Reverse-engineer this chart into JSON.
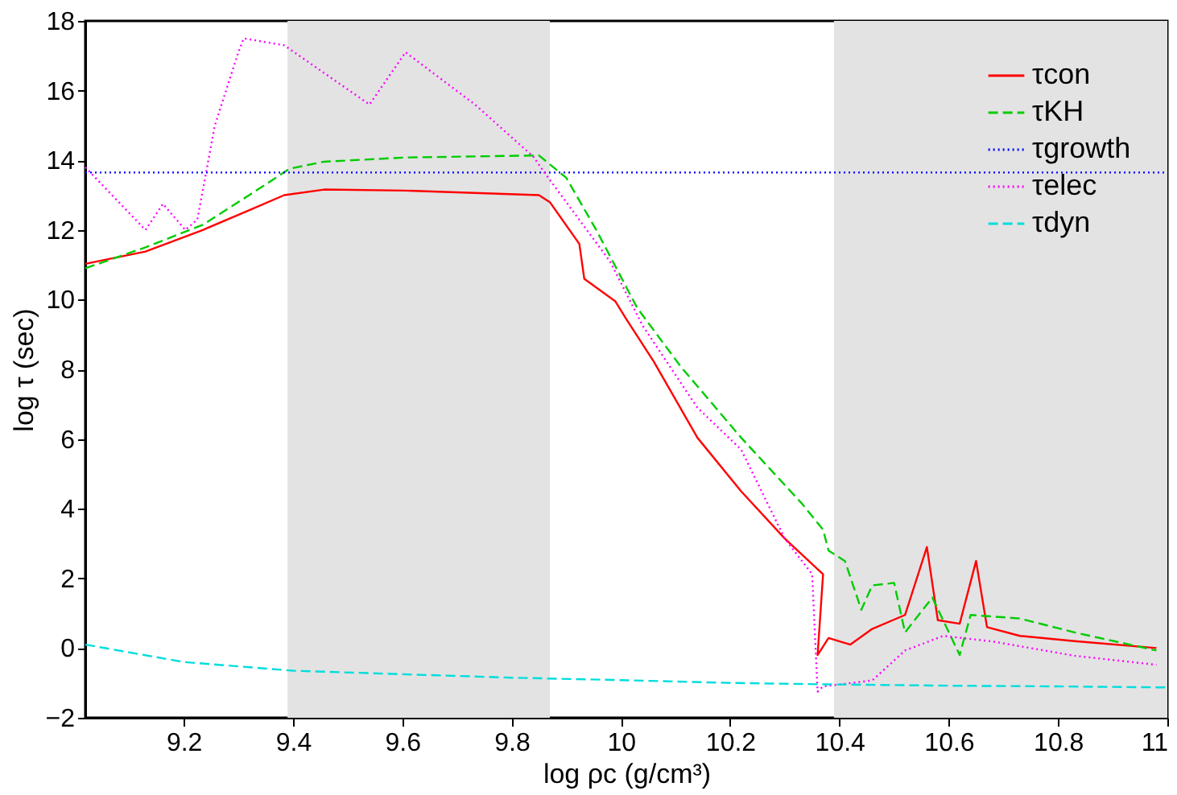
{
  "chart_data": {
    "type": "line",
    "xlabel": "log ρc (g/cm³)",
    "ylabel": "log τ (sec)",
    "xlim": [
      9.02,
      11
    ],
    "ylim": [
      -2,
      18
    ],
    "xticks": [
      9.2,
      9.4,
      9.6,
      9.8,
      10,
      10.2,
      10.4,
      10.6,
      10.8,
      11
    ],
    "yticks": [
      -2,
      0,
      2,
      4,
      6,
      8,
      10,
      12,
      14,
      16,
      18
    ],
    "grid": false,
    "legend": "top right",
    "marker": "none",
    "bands": [
      {
        "axis": "x",
        "from": 9.39,
        "to": 9.87,
        "label": null,
        "color": "#e3e3e3"
      },
      {
        "axis": "x",
        "from": 10.39,
        "to": 11,
        "label": null,
        "color": "#e3e3e3"
      }
    ],
    "series": [
      {
        "name": "τcon",
        "color": "#ff0000",
        "line_style": "solid",
        "x": [
          9.02,
          9.13,
          9.235,
          9.31,
          9.384,
          9.457,
          9.606,
          9.85,
          9.87,
          9.924,
          9.933,
          9.99,
          10.01,
          10.06,
          10.14,
          10.22,
          10.3,
          10.37,
          10.36,
          10.38,
          10.42,
          10.46,
          10.52,
          10.56,
          10.58,
          10.62,
          10.65,
          10.67,
          10.73,
          10.83,
          10.98
        ],
        "values": [
          11.03,
          11.38,
          12.0,
          12.5,
          13.0,
          13.16,
          13.13,
          13.0,
          12.8,
          11.6,
          10.6,
          9.95,
          9.44,
          8.23,
          6.04,
          4.5,
          3.14,
          2.12,
          -0.2,
          0.29,
          0.1,
          0.55,
          0.95,
          2.9,
          0.8,
          0.7,
          2.5,
          0.6,
          0.35,
          0.2,
          0.0
        ]
      },
      {
        "name": "τKH",
        "color": "#00cc00",
        "line_style": "dashed",
        "x": [
          9.02,
          9.13,
          9.235,
          9.32,
          9.394,
          9.457,
          9.606,
          9.85,
          9.9,
          9.955,
          10.03,
          10.11,
          10.22,
          10.33,
          10.37,
          10.38,
          10.41,
          10.44,
          10.46,
          10.5,
          10.52,
          10.57,
          10.62,
          10.64,
          10.73,
          10.83,
          10.98
        ],
        "values": [
          10.9,
          11.5,
          12.15,
          13.0,
          13.76,
          13.96,
          14.08,
          14.14,
          13.5,
          12.0,
          9.76,
          8.07,
          6.04,
          4.17,
          3.4,
          2.8,
          2.5,
          1.1,
          1.8,
          1.87,
          0.45,
          1.45,
          -0.2,
          0.95,
          0.85,
          0.45,
          -0.07
        ]
      },
      {
        "name": "τgrowth",
        "color": "#0000ff",
        "line_style": "dotted",
        "x": [
          9.02,
          11
        ],
        "values": [
          13.65,
          13.65
        ]
      },
      {
        "name": "τelec",
        "color": "#ff00ff",
        "line_style": "dotted",
        "x": [
          9.02,
          9.13,
          9.162,
          9.203,
          9.225,
          9.257,
          9.3,
          9.31,
          9.384,
          9.54,
          9.606,
          9.733,
          9.84,
          9.86,
          9.98,
          10.04,
          10.14,
          10.22,
          10.3,
          10.35,
          10.36,
          10.37,
          10.46,
          10.52,
          10.59,
          10.68,
          10.83,
          10.98
        ],
        "values": [
          13.8,
          12.0,
          12.75,
          12.0,
          12.3,
          15.0,
          17.1,
          17.5,
          17.3,
          15.6,
          17.1,
          15.6,
          14.1,
          13.65,
          11.1,
          9.25,
          6.9,
          5.7,
          3.14,
          2.12,
          -1.25,
          -1.1,
          -0.93,
          -0.07,
          0.35,
          0.19,
          -0.22,
          -0.48
        ]
      },
      {
        "name": "τdyn",
        "color": "#00dddd",
        "line_style": "dashed",
        "x": [
          9.02,
          9.2,
          9.4,
          9.6,
          9.8,
          10.0,
          10.2,
          10.37,
          10.6,
          10.8,
          11
        ],
        "values": [
          0.1,
          -0.4,
          -0.65,
          -0.75,
          -0.85,
          -0.92,
          -1.0,
          -1.04,
          -1.08,
          -1.1,
          -1.13
        ]
      }
    ]
  }
}
